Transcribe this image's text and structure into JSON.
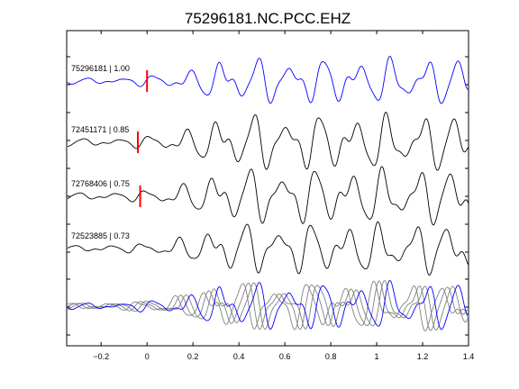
{
  "chart_data": {
    "type": "line",
    "title": "75296181.NC.PCC.EHZ",
    "xlabel": "",
    "ylabel": "",
    "xlim": [
      -0.35,
      1.4
    ],
    "x_ticks": [
      -0.2,
      0,
      0.2,
      0.4,
      0.6,
      0.8,
      1,
      1.2,
      1.4
    ],
    "x_tick_labels": [
      "−0.2",
      "0",
      "0.2",
      "0.4",
      "0.6",
      "0.8",
      "1",
      "1.2",
      "1.4"
    ],
    "grid": false,
    "traces": [
      {
        "label": "75296181 | 1.00",
        "color": "#0000ff",
        "pick_time": 0.0
      },
      {
        "label": "72451171 | 0.85",
        "color": "#000000",
        "pick_time": -0.04
      },
      {
        "label": "72768406 | 0.75",
        "color": "#000000",
        "pick_time": -0.03
      },
      {
        "label": "72523885 | 0.73",
        "color": "#000000",
        "pick_time": null
      }
    ],
    "overlay": {
      "colors": [
        "#0000ff",
        "#808080"
      ]
    },
    "pick_color": "#ff0000"
  }
}
